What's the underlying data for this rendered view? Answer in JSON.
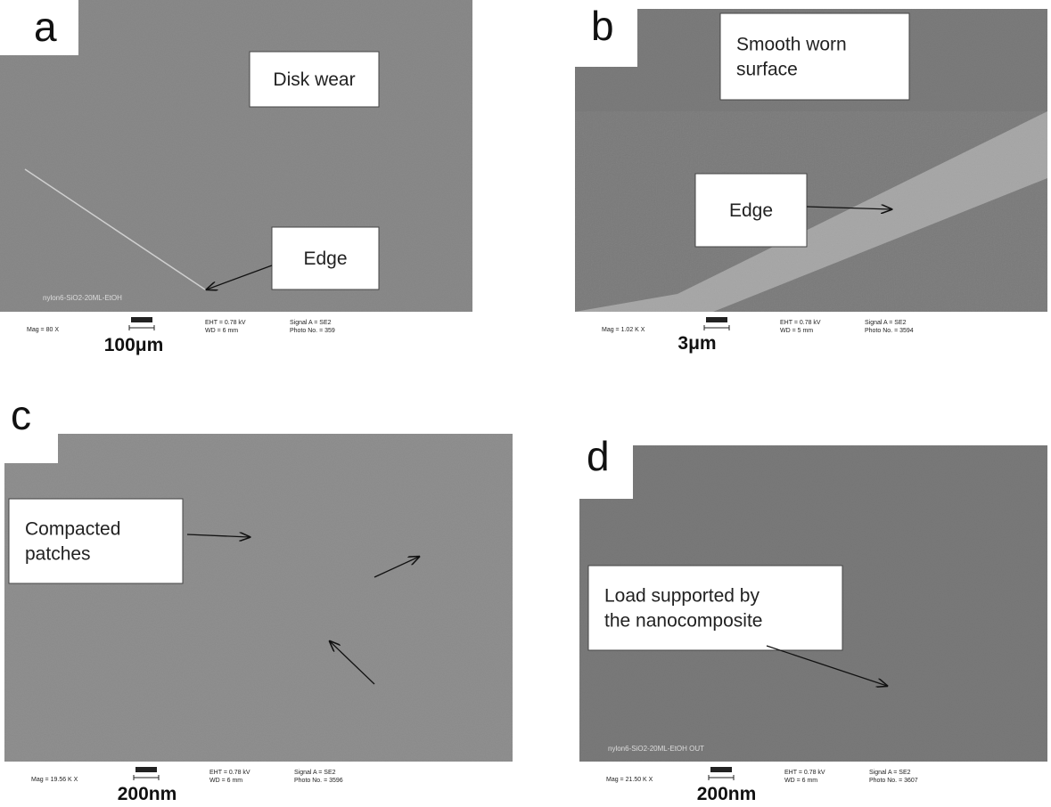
{
  "panels": [
    {
      "label": "a",
      "annotations": [
        {
          "lines": [
            "Disk wear"
          ]
        },
        {
          "lines": [
            "Edge"
          ]
        }
      ],
      "watermark": "nylon6-SiO2-20ML-EtOH",
      "info": {
        "mag": "Mag =   80 X",
        "eht": "EHT =  0.78 kV",
        "wd": "WD =   6 mm",
        "signal": "Signal A = SE2",
        "photo": "Photo No. = 359"
      },
      "scale": "100μm"
    },
    {
      "label": "b",
      "annotations": [
        {
          "lines": [
            "Smooth worn",
            "surface"
          ]
        },
        {
          "lines": [
            "Edge"
          ]
        }
      ],
      "watermark": null,
      "info": {
        "mag": "Mag =  1.02 K X",
        "eht": "EHT =  0.78 kV",
        "wd": "WD =   5 mm",
        "signal": "Signal A = SE2",
        "photo": "Photo No. = 3594"
      },
      "scale": "3μm"
    },
    {
      "label": "c",
      "annotations": [
        {
          "lines": [
            "Compacted",
            "patches"
          ]
        }
      ],
      "watermark": null,
      "info": {
        "mag": "Mag =  19.56 K X",
        "eht": "EHT =  0.78 kV",
        "wd": "WD =   6 mm",
        "signal": "Signal A = SE2",
        "photo": "Photo No. = 3596"
      },
      "scale": "200nm"
    },
    {
      "label": "d",
      "annotations": [
        {
          "lines": [
            "Load supported by",
            "the nanocomposite"
          ]
        }
      ],
      "watermark": "nylon6-SiO2-20ML-EtOH  OUT",
      "info": {
        "mag": "Mag =  21.50 K X",
        "eht": "EHT =  0.78 kV",
        "wd": "WD =   6 mm",
        "signal": "Signal A = SE2",
        "photo": "Photo No. = 3607"
      },
      "scale": "200nm"
    }
  ]
}
